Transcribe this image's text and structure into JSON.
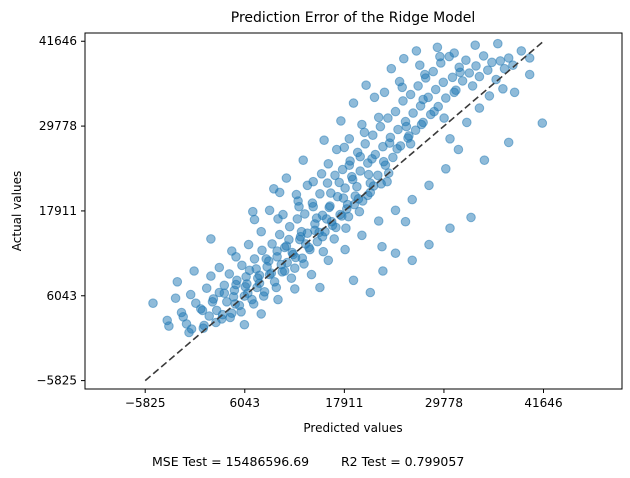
{
  "chart_data": {
    "type": "scatter",
    "title": "Prediction Error of the Ridge Model",
    "xlabel": "Predicted values",
    "ylabel": "Actual values",
    "xticks": [
      -5825,
      6043,
      17911,
      29778,
      41646
    ],
    "yticks": [
      -5825,
      6043,
      17911,
      29778,
      41646
    ],
    "tick_labels": [
      "−5825",
      "6043",
      "17911",
      "29778",
      "41646"
    ],
    "xlim": [
      -13000,
      51000
    ],
    "ylim": [
      -7000,
      42800
    ],
    "grid": false,
    "reference_line": {
      "from": [
        -5825,
        -5825
      ],
      "to": [
        41646,
        41646
      ],
      "style": "dashed",
      "color": "#3a3a3a"
    },
    "marker_color": "#1f77b4",
    "marker_alpha": 0.5,
    "footer": {
      "mse_label": "MSE Test = 15486596.69",
      "r2_label": "R2 Test = 0.799057"
    },
    "points": [
      [
        -4900,
        5000
      ],
      [
        -3200,
        2600
      ],
      [
        -3000,
        1800
      ],
      [
        -1500,
        3700
      ],
      [
        -900,
        2100
      ],
      [
        -300,
        1400
      ],
      [
        -400,
        6200
      ],
      [
        200,
        5000
      ],
      [
        800,
        4200
      ],
      [
        1200,
        1900
      ],
      [
        1500,
        7100
      ],
      [
        1800,
        3200
      ],
      [
        2000,
        8800
      ],
      [
        2300,
        5600
      ],
      [
        2700,
        4000
      ],
      [
        3000,
        6500
      ],
      [
        3300,
        2800
      ],
      [
        3600,
        7500
      ],
      [
        3900,
        5200
      ],
      [
        4200,
        9100
      ],
      [
        4500,
        3600
      ],
      [
        4800,
        6800
      ],
      [
        5100,
        8200
      ],
      [
        5400,
        4700
      ],
      [
        5700,
        10300
      ],
      [
        6000,
        6000
      ],
      [
        6300,
        7700
      ],
      [
        6600,
        9600
      ],
      [
        6900,
        5500
      ],
      [
        7200,
        11200
      ],
      [
        7500,
        7200
      ],
      [
        7800,
        8900
      ],
      [
        8100,
        12400
      ],
      [
        8400,
        6600
      ],
      [
        8700,
        10100
      ],
      [
        9000,
        9000
      ],
      [
        9300,
        13300
      ],
      [
        9600,
        8000
      ],
      [
        9900,
        11500
      ],
      [
        10200,
        14600
      ],
      [
        10500,
        9400
      ],
      [
        10800,
        12800
      ],
      [
        11100,
        10700
      ],
      [
        11400,
        15700
      ],
      [
        11700,
        12100
      ],
      [
        12000,
        9900
      ],
      [
        12300,
        16800
      ],
      [
        12600,
        13900
      ],
      [
        12900,
        11300
      ],
      [
        13200,
        17500
      ],
      [
        13500,
        14800
      ],
      [
        13800,
        12500
      ],
      [
        14100,
        19000
      ],
      [
        14400,
        16100
      ],
      [
        14700,
        13600
      ],
      [
        15000,
        20300
      ],
      [
        15300,
        17300
      ],
      [
        15600,
        15000
      ],
      [
        15900,
        21800
      ],
      [
        16200,
        18600
      ],
      [
        16500,
        15900
      ],
      [
        16800,
        22900
      ],
      [
        17100,
        19900
      ],
      [
        17400,
        17400
      ],
      [
        17700,
        23700
      ],
      [
        18000,
        21100
      ],
      [
        18300,
        18800
      ],
      [
        18600,
        24900
      ],
      [
        18900,
        22300
      ],
      [
        19200,
        20000
      ],
      [
        19500,
        26100
      ],
      [
        19800,
        23500
      ],
      [
        20100,
        19300
      ],
      [
        20400,
        27300
      ],
      [
        20700,
        24600
      ],
      [
        21000,
        21800
      ],
      [
        21300,
        28500
      ],
      [
        21600,
        25800
      ],
      [
        21900,
        22900
      ],
      [
        22200,
        29700
      ],
      [
        22500,
        26900
      ],
      [
        22800,
        24300
      ],
      [
        23100,
        30900
      ],
      [
        23400,
        28200
      ],
      [
        23700,
        25400
      ],
      [
        24000,
        31800
      ],
      [
        24300,
        29300
      ],
      [
        24600,
        27000
      ],
      [
        24900,
        33300
      ],
      [
        25200,
        30400
      ],
      [
        25500,
        28100
      ],
      [
        25800,
        34200
      ],
      [
        26100,
        31600
      ],
      [
        26400,
        29200
      ],
      [
        26700,
        35400
      ],
      [
        27000,
        32600
      ],
      [
        27300,
        30300
      ],
      [
        27600,
        36500
      ],
      [
        27900,
        33800
      ],
      [
        28200,
        31400
      ],
      [
        28500,
        37400
      ],
      [
        28800,
        34900
      ],
      [
        29100,
        32500
      ],
      [
        29400,
        38600
      ],
      [
        29700,
        35900
      ],
      [
        30000,
        33700
      ],
      [
        30400,
        39500
      ],
      [
        30800,
        36600
      ],
      [
        31200,
        34800
      ],
      [
        31600,
        38000
      ],
      [
        32000,
        36100
      ],
      [
        32400,
        39000
      ],
      [
        32800,
        37200
      ],
      [
        33200,
        35400
      ],
      [
        33600,
        38200
      ],
      [
        34000,
        36700
      ],
      [
        34500,
        39600
      ],
      [
        35000,
        37600
      ],
      [
        35500,
        38700
      ],
      [
        36000,
        36300
      ],
      [
        36500,
        38900
      ],
      [
        37000,
        37800
      ],
      [
        37500,
        39300
      ],
      [
        38000,
        38300
      ],
      [
        39000,
        40300
      ],
      [
        40000,
        37000
      ],
      [
        41500,
        30200
      ],
      [
        34600,
        25000
      ],
      [
        31500,
        26500
      ],
      [
        30000,
        23800
      ],
      [
        28000,
        21500
      ],
      [
        26000,
        19500
      ],
      [
        24000,
        18000
      ],
      [
        22000,
        16500
      ],
      [
        20000,
        14500
      ],
      [
        18000,
        12500
      ],
      [
        16000,
        11000
      ],
      [
        14000,
        9000
      ],
      [
        12000,
        7000
      ],
      [
        10000,
        5500
      ],
      [
        8000,
        3500
      ],
      [
        6000,
        2000
      ],
      [
        19000,
        8200
      ],
      [
        22500,
        9500
      ],
      [
        26000,
        11000
      ],
      [
        28000,
        13200
      ],
      [
        33000,
        17000
      ],
      [
        30500,
        15500
      ],
      [
        24000,
        12000
      ],
      [
        21000,
        6500
      ],
      [
        15000,
        7200
      ],
      [
        12500,
        18500
      ],
      [
        10000,
        16800
      ],
      [
        8000,
        15000
      ],
      [
        5000,
        11500
      ],
      [
        3000,
        10000
      ],
      [
        0,
        9500
      ],
      [
        -2000,
        8000
      ],
      [
        2000,
        14000
      ],
      [
        7000,
        17800
      ],
      [
        9500,
        21000
      ],
      [
        13000,
        25000
      ],
      [
        11000,
        22500
      ],
      [
        15500,
        27800
      ],
      [
        17500,
        30500
      ],
      [
        19000,
        33000
      ],
      [
        20500,
        35500
      ],
      [
        22000,
        31000
      ],
      [
        23500,
        37800
      ],
      [
        25000,
        39200
      ],
      [
        26500,
        40300
      ],
      [
        27500,
        37000
      ],
      [
        29000,
        40800
      ],
      [
        31000,
        40000
      ],
      [
        18500,
        28000
      ],
      [
        16000,
        24500
      ],
      [
        14200,
        22000
      ],
      [
        12200,
        20200
      ],
      [
        6500,
        13200
      ],
      [
        4500,
        12300
      ],
      [
        9000,
        18000
      ],
      [
        13500,
        21500
      ],
      [
        17000,
        26500
      ],
      [
        20000,
        30000
      ],
      [
        21500,
        33800
      ],
      [
        24500,
        36000
      ],
      [
        30500,
        28000
      ],
      [
        32500,
        30300
      ],
      [
        34000,
        32300
      ],
      [
        35200,
        34000
      ],
      [
        36800,
        35000
      ],
      [
        38200,
        34500
      ],
      [
        33500,
        41100
      ],
      [
        36200,
        41300
      ],
      [
        40000,
        39300
      ],
      [
        31000,
        34500
      ],
      [
        27300,
        33500
      ],
      [
        25800,
        27300
      ],
      [
        23000,
        22000
      ],
      [
        21000,
        20500
      ],
      [
        19700,
        17800
      ],
      [
        18100,
        15500
      ],
      [
        16700,
        14000
      ],
      [
        15400,
        12200
      ],
      [
        13100,
        10500
      ],
      [
        11600,
        8500
      ],
      [
        9800,
        7200
      ],
      [
        8300,
        6000
      ],
      [
        7100,
        4900
      ],
      [
        5600,
        3800
      ],
      [
        4300,
        3000
      ],
      [
        2600,
        2300
      ],
      [
        1100,
        1500
      ],
      [
        -600,
        900
      ],
      [
        14200,
        18500
      ],
      [
        16300,
        20400
      ],
      [
        18800,
        22700
      ],
      [
        21200,
        25200
      ],
      [
        23300,
        27400
      ],
      [
        25300,
        29700
      ],
      [
        11300,
        13900
      ],
      [
        9900,
        12300
      ],
      [
        8600,
        11200
      ],
      [
        7400,
        9800
      ],
      [
        6200,
        8700
      ],
      [
        5000,
        7600
      ],
      [
        3600,
        6400
      ],
      [
        2200,
        5200
      ],
      [
        1000,
        4000
      ],
      [
        -1300,
        3100
      ],
      [
        -2200,
        5700
      ],
      [
        17800,
        19700
      ],
      [
        19400,
        21300
      ],
      [
        20800,
        23000
      ],
      [
        22600,
        24800
      ],
      [
        24200,
        26600
      ],
      [
        25600,
        28400
      ],
      [
        27100,
        30000
      ],
      [
        28600,
        31800
      ],
      [
        29800,
        30900
      ],
      [
        12800,
        15000
      ],
      [
        14600,
        16900
      ],
      [
        16100,
        18400
      ],
      [
        17300,
        21900
      ],
      [
        18500,
        24300
      ],
      [
        19800,
        25500
      ],
      [
        10600,
        17400
      ],
      [
        12400,
        19300
      ],
      [
        15200,
        23100
      ],
      [
        17900,
        26800
      ],
      [
        20300,
        28900
      ],
      [
        22700,
        34500
      ],
      [
        24800,
        35200
      ],
      [
        26900,
        38300
      ],
      [
        29300,
        39500
      ],
      [
        31700,
        37300
      ],
      [
        11800,
        11800
      ],
      [
        13300,
        13300
      ],
      [
        14900,
        14900
      ],
      [
        16400,
        16400
      ],
      [
        18200,
        18200
      ],
      [
        19600,
        19600
      ],
      [
        21400,
        21400
      ],
      [
        23200,
        23200
      ],
      [
        7800,
        7800
      ],
      [
        9200,
        9200
      ],
      [
        10400,
        10400
      ],
      [
        6400,
        6400
      ],
      [
        4900,
        4900
      ],
      [
        3400,
        3400
      ],
      [
        11000,
        13000
      ],
      [
        12700,
        14300
      ],
      [
        14400,
        15200
      ],
      [
        15800,
        16800
      ],
      [
        17600,
        17200
      ],
      [
        19100,
        18800
      ],
      [
        20700,
        20100
      ],
      [
        22300,
        21700
      ],
      [
        8900,
        10900
      ],
      [
        7600,
        8500
      ],
      [
        6100,
        7300
      ],
      [
        4700,
        5900
      ],
      [
        10800,
        9500
      ],
      [
        12100,
        11400
      ],
      [
        13700,
        12800
      ],
      [
        15300,
        14300
      ],
      [
        16900,
        15600
      ],
      [
        18400,
        17100
      ],
      [
        10200,
        20500
      ],
      [
        7200,
        16700
      ],
      [
        22400,
        12900
      ],
      [
        25200,
        16400
      ],
      [
        37500,
        27500
      ]
    ]
  }
}
